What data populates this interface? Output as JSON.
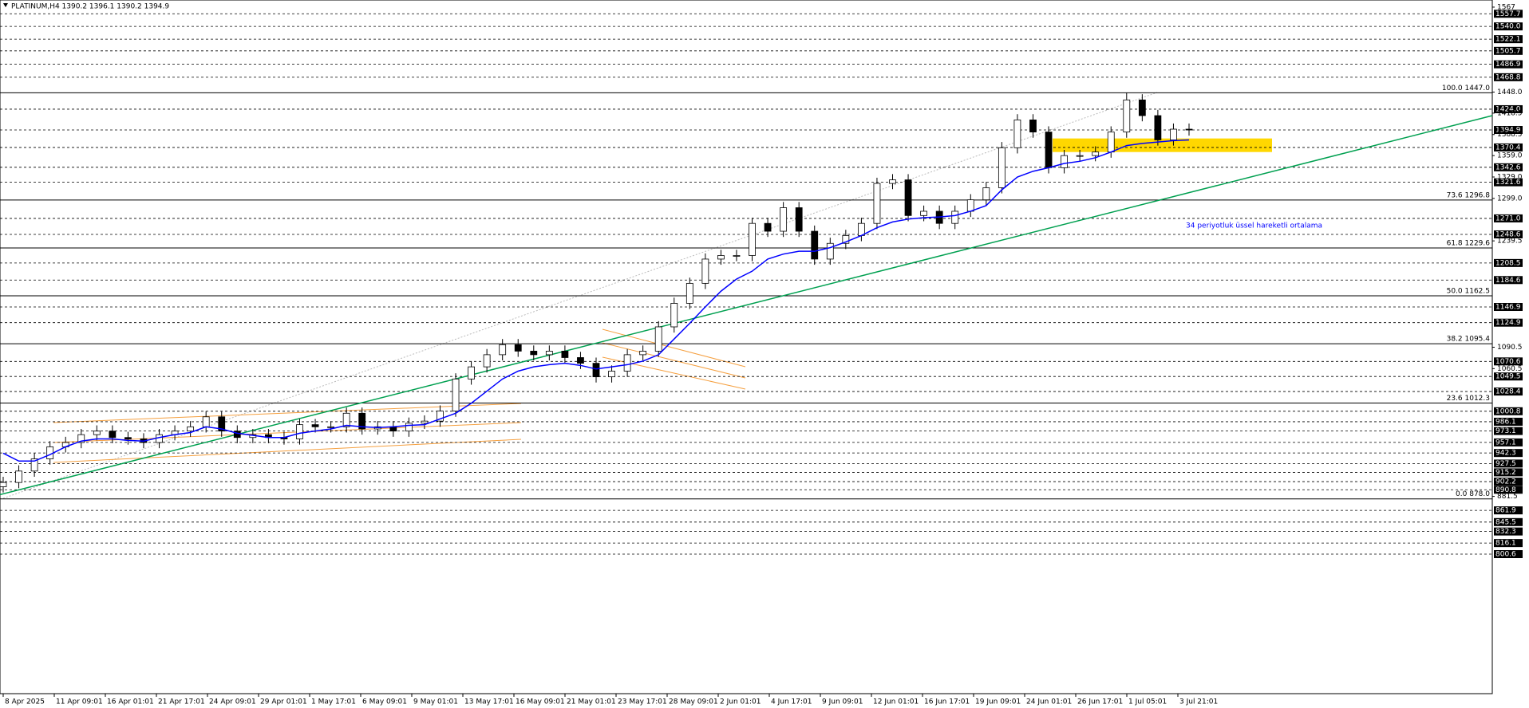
{
  "chart_data": {
    "type": "candlestick",
    "title": "PLATINUM,H4  1390.2 1396.1 1390.2 1394.9",
    "open": [
      895,
      901,
      917,
      934,
      951,
      957,
      968,
      973,
      964,
      962,
      957,
      968,
      973,
      979,
      993,
      973,
      964,
      968,
      964,
      962,
      982,
      979,
      979,
      998,
      976,
      979,
      973,
      984,
      987,
      1001,
      1046,
      1063,
      1080,
      1094,
      1085,
      1080,
      1085,
      1076,
      1068,
      1049,
      1057,
      1080,
      1085,
      1119,
      1152,
      1180,
      1214,
      1219,
      1219,
      1264,
      1253,
      1286,
      1253,
      1214,
      1236,
      1247,
      1264,
      1320,
      1325,
      1275,
      1281,
      1264,
      1281,
      1297,
      1314,
      1370,
      1409,
      1392,
      1342,
      1359,
      1359,
      1364,
      1392,
      1437,
      1415,
      1381,
      1396
    ],
    "high": [
      909,
      925,
      942,
      959,
      965,
      976,
      981,
      981,
      972,
      970,
      976,
      981,
      987,
      1001,
      1001,
      981,
      976,
      976,
      972,
      990,
      990,
      987,
      1006,
      1006,
      987,
      987,
      992,
      995,
      1009,
      1054,
      1071,
      1088,
      1102,
      1102,
      1093,
      1093,
      1093,
      1084,
      1076,
      1065,
      1088,
      1093,
      1127,
      1160,
      1188,
      1222,
      1227,
      1227,
      1272,
      1272,
      1294,
      1294,
      1261,
      1244,
      1255,
      1272,
      1328,
      1333,
      1333,
      1289,
      1289,
      1289,
      1305,
      1322,
      1378,
      1417,
      1417,
      1400,
      1367,
      1367,
      1372,
      1400,
      1447,
      1445,
      1423,
      1404,
      1404
    ],
    "low": [
      887,
      893,
      909,
      926,
      943,
      949,
      960,
      956,
      954,
      949,
      949,
      960,
      965,
      971,
      965,
      956,
      956,
      956,
      954,
      954,
      971,
      971,
      971,
      968,
      968,
      965,
      965,
      976,
      979,
      993,
      1038,
      1055,
      1072,
      1077,
      1072,
      1072,
      1068,
      1060,
      1041,
      1041,
      1049,
      1072,
      1077,
      1111,
      1144,
      1172,
      1206,
      1211,
      1211,
      1245,
      1245,
      1245,
      1206,
      1206,
      1228,
      1239,
      1256,
      1312,
      1267,
      1267,
      1256,
      1256,
      1273,
      1289,
      1306,
      1362,
      1384,
      1334,
      1334,
      1351,
      1351,
      1356,
      1384,
      1407,
      1373,
      1373,
      1387
    ],
    "close": [
      901,
      917,
      934,
      951,
      957,
      968,
      973,
      964,
      962,
      957,
      968,
      973,
      979,
      993,
      973,
      964,
      968,
      964,
      962,
      982,
      979,
      979,
      998,
      976,
      979,
      973,
      984,
      987,
      1001,
      1046,
      1063,
      1080,
      1094,
      1085,
      1080,
      1085,
      1076,
      1068,
      1049,
      1057,
      1080,
      1085,
      1119,
      1152,
      1180,
      1214,
      1219,
      1219,
      1264,
      1253,
      1286,
      1253,
      1214,
      1236,
      1247,
      1264,
      1320,
      1325,
      1275,
      1281,
      1264,
      1281,
      1297,
      1314,
      1370,
      1409,
      1392,
      1342,
      1359,
      1359,
      1364,
      1392,
      1437,
      1415,
      1381,
      1396,
      1394.9
    ],
    "xticks": [
      "8 Apr 2025",
      "11 Apr 09:01",
      "16 Apr 01:01",
      "21 Apr 17:01",
      "24 Apr 09:01",
      "29 Apr 01:01",
      "1 May 17:01",
      "6 May 09:01",
      "9 May 01:01",
      "13 May 17:01",
      "16 May 09:01",
      "21 May 01:01",
      "23 May 17:01",
      "28 May 09:01",
      "2 Jun 01:01",
      "4 Jun 17:01",
      "9 Jun 09:01",
      "12 Jun 01:01",
      "16 Jun 17:01",
      "19 Jun 09:01",
      "24 Jun 01:01",
      "26 Jun 17:01",
      "1 Jul 05:01",
      "3 Jul 21:01"
    ],
    "ylim": [
      585,
      1577
    ],
    "yticks": [
      1567,
      {
        "value": 1448,
        "label": "1448.0"
      },
      1418.5,
      1388.5,
      {
        "value": 1359,
        "label": "1359.0"
      },
      {
        "value": 1329,
        "label": "1329.0"
      },
      {
        "value": 1299,
        "label": "1299.0"
      },
      1239.5,
      1090.5,
      1060.5,
      881.5
    ],
    "levels": [
      1557.7,
      {
        "value": 1540,
        "label": "1540.0"
      },
      1522.1,
      1505.7,
      1486.9,
      1468.8,
      {
        "value": 1424,
        "label": "1424.0"
      },
      1394.9,
      1370.4,
      1342.6,
      1321.6,
      {
        "value": 1271,
        "label": "1271.0"
      },
      1248.6,
      1208.5,
      1184.6,
      1146.9,
      1124.9,
      1070.6,
      1049.5,
      1028.4,
      1000.8,
      986.1,
      973.1,
      957.1,
      942.3,
      927.5,
      915.2,
      902.2,
      890.8,
      861.9,
      845.5,
      832.3,
      816.1,
      800.6
    ],
    "fib": [
      {
        "value": 1447.0,
        "label": "100.0 1447.0"
      },
      {
        "value": 1296.8,
        "label": "73.6 1296.8"
      },
      {
        "value": 1229.6,
        "label": "61.8 1229.6"
      },
      {
        "value": 1162.5,
        "label": "50.0 1162.5"
      },
      {
        "value": 1095.4,
        "label": "38.2 1095.4"
      },
      {
        "value": 1012.3,
        "label": "23.6 1012.3"
      },
      {
        "value": 878.0,
        "label": "0.0 878.0"
      }
    ],
    "ema": {
      "name": "34 periyotluk üssel hareketli ortalama",
      "color": "#0000ff",
      "values": [
        942,
        931,
        931,
        940,
        951,
        959,
        962,
        962,
        960,
        959,
        964,
        968,
        971,
        979,
        976,
        970,
        967,
        964,
        964,
        970,
        973,
        976,
        981,
        979,
        978,
        979,
        981,
        982,
        990,
        998,
        1012,
        1029,
        1046,
        1057,
        1063,
        1066,
        1068,
        1065,
        1060,
        1063,
        1066,
        1071,
        1080,
        1102,
        1124,
        1147,
        1169,
        1186,
        1197,
        1214,
        1221,
        1225,
        1225,
        1230,
        1238,
        1247,
        1258,
        1266,
        1270,
        1272,
        1273,
        1275,
        1281,
        1289,
        1311,
        1329,
        1337,
        1342,
        1348,
        1351,
        1356,
        1364,
        1373,
        1376,
        1378,
        1380,
        1381
      ]
    },
    "trendline": {
      "color": "#00a050",
      "values": [
        884,
        1415
      ]
    },
    "zone": {
      "color": "#ffd700",
      "values": [
        1364,
        1383
      ]
    }
  }
}
